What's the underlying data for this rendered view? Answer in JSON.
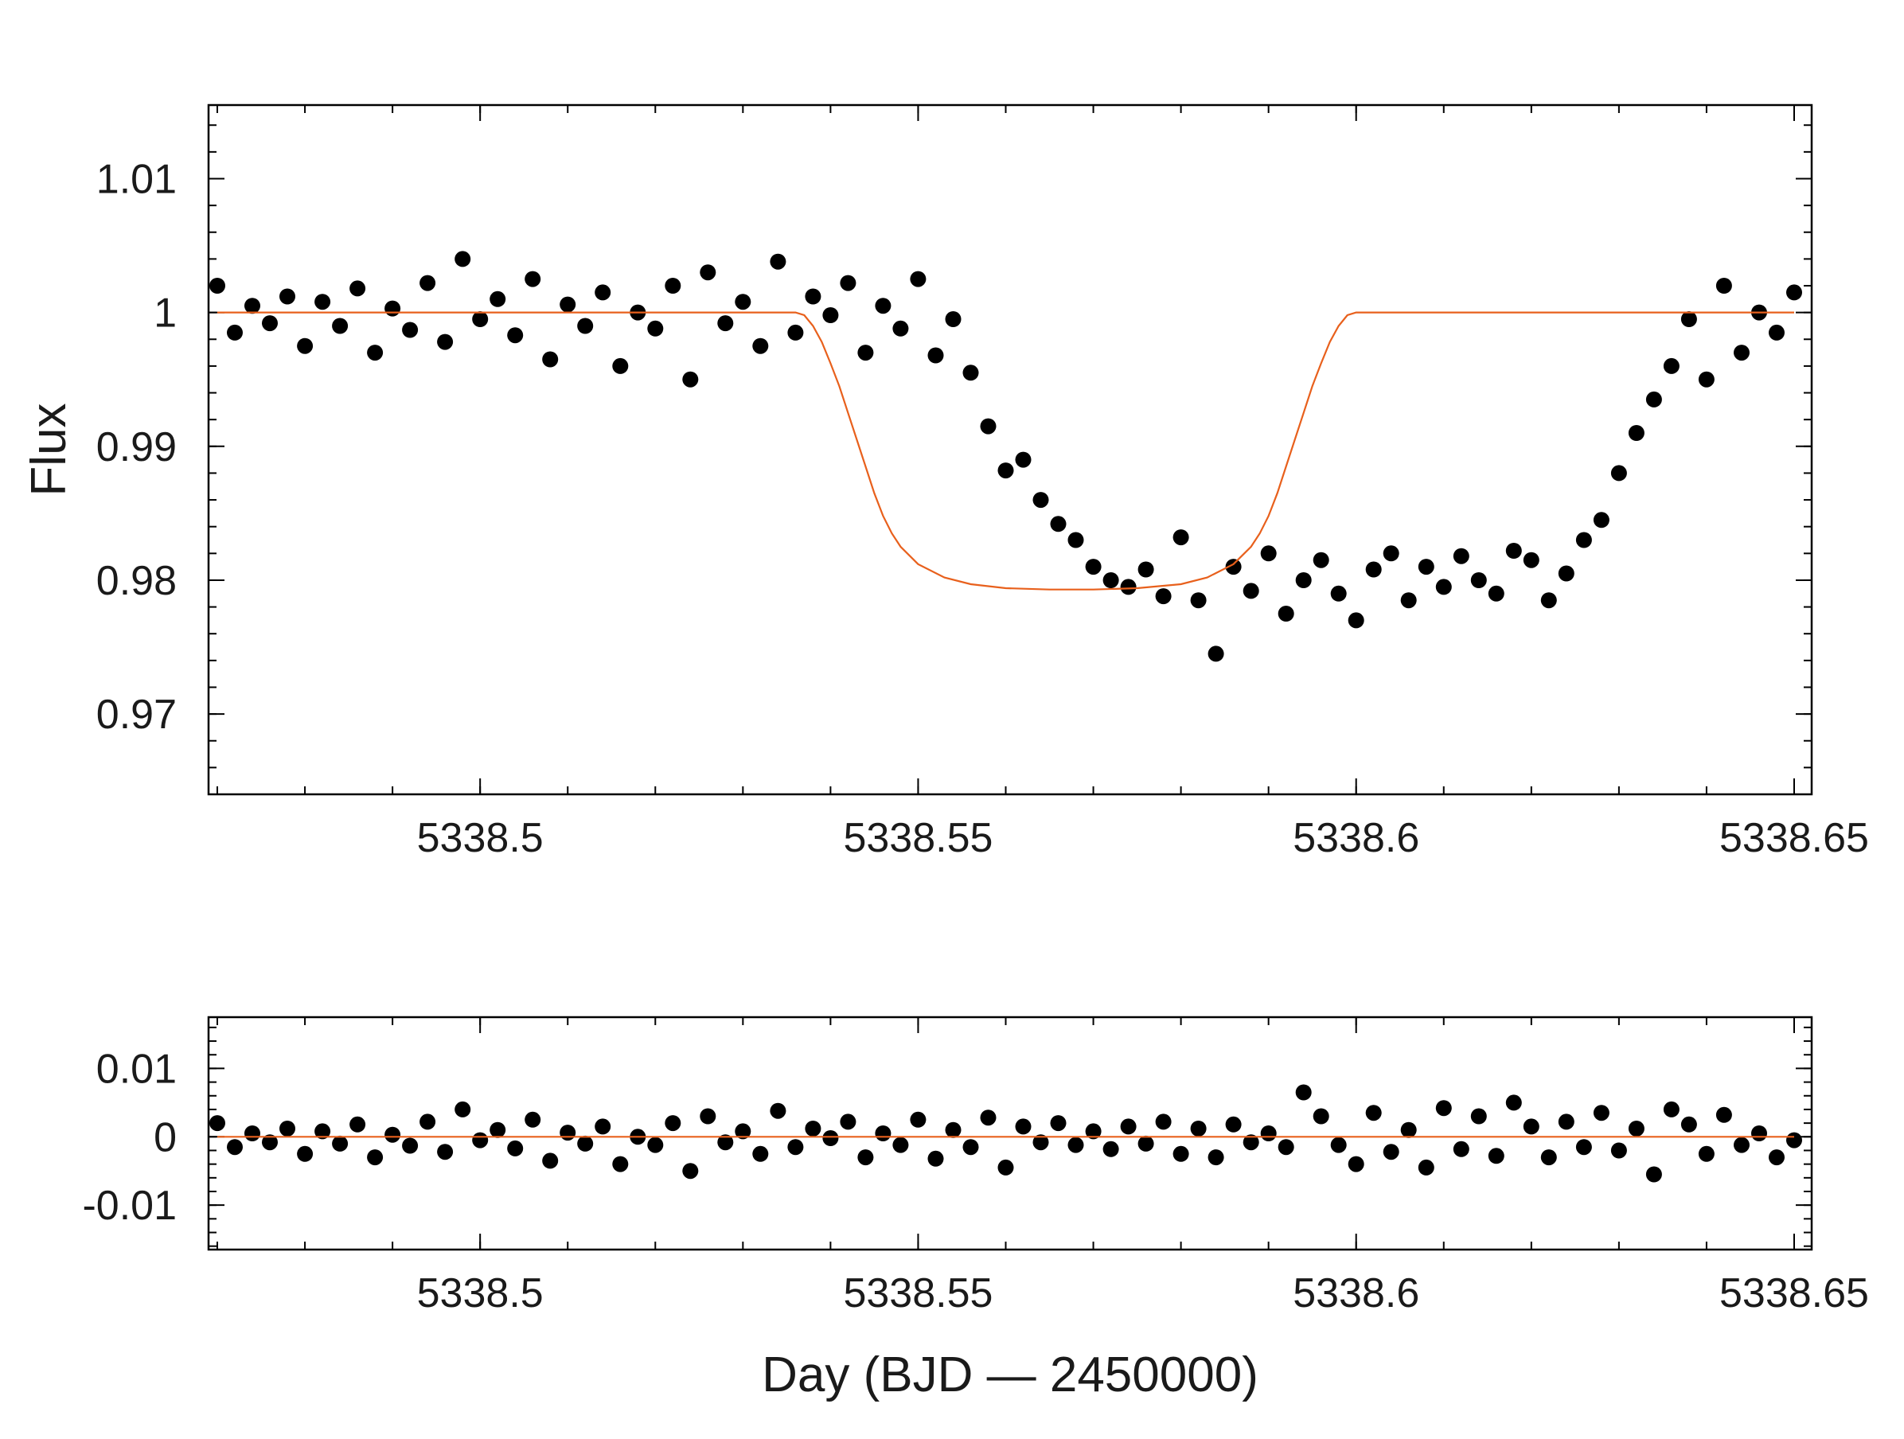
{
  "chart_data": [
    {
      "type": "scatter",
      "title": "",
      "xlabel": "",
      "ylabel": "Flux",
      "xlim": [
        5338.469,
        5338.652
      ],
      "ylim": [
        0.964,
        1.0155
      ],
      "x_ticks": [
        5338.5,
        5338.55,
        5338.6,
        5338.65
      ],
      "x_tick_labels": [
        "5338.5",
        "5338.55",
        "5338.6",
        "5338.65"
      ],
      "y_ticks": [
        0.97,
        0.98,
        0.99,
        1.0,
        1.01
      ],
      "y_tick_labels": [
        "0.97",
        "0.98",
        "0.99",
        "1",
        "1.01"
      ],
      "grid": false,
      "series": [
        {
          "kind": "points",
          "color": "#000000",
          "x": [
            5338.47,
            5338.472,
            5338.474,
            5338.476,
            5338.478,
            5338.48,
            5338.482,
            5338.484,
            5338.486,
            5338.488,
            5338.49,
            5338.492,
            5338.494,
            5338.496,
            5338.498,
            5338.5,
            5338.502,
            5338.504,
            5338.506,
            5338.508,
            5338.51,
            5338.512,
            5338.514,
            5338.516,
            5338.518,
            5338.52,
            5338.522,
            5338.524,
            5338.526,
            5338.528,
            5338.53,
            5338.532,
            5338.534,
            5338.536,
            5338.538,
            5338.54,
            5338.542,
            5338.544,
            5338.546,
            5338.548,
            5338.55,
            5338.552,
            5338.554,
            5338.556,
            5338.558,
            5338.56,
            5338.562,
            5338.564,
            5338.566,
            5338.568,
            5338.57,
            5338.572,
            5338.574,
            5338.576,
            5338.578,
            5338.58,
            5338.582,
            5338.584,
            5338.586,
            5338.588,
            5338.59,
            5338.592,
            5338.594,
            5338.596,
            5338.598,
            5338.6,
            5338.602,
            5338.604,
            5338.606,
            5338.608,
            5338.61,
            5338.612,
            5338.614,
            5338.616,
            5338.618,
            5338.62,
            5338.622,
            5338.624,
            5338.626,
            5338.628,
            5338.63,
            5338.632,
            5338.634,
            5338.636,
            5338.638,
            5338.64,
            5338.642,
            5338.644,
            5338.646,
            5338.648,
            5338.65
          ],
          "y": [
            1.002,
            0.9985,
            1.0005,
            0.9992,
            1.0012,
            0.9975,
            1.0008,
            0.999,
            1.0018,
            0.997,
            1.0003,
            0.9987,
            1.0022,
            0.9978,
            1.004,
            0.9995,
            1.001,
            0.9983,
            1.0025,
            0.9965,
            1.0006,
            0.999,
            1.0015,
            0.996,
            1.0,
            0.9988,
            1.002,
            0.995,
            1.003,
            0.9992,
            1.0008,
            0.9975,
            1.0038,
            0.9985,
            1.0012,
            0.9998,
            1.0022,
            0.997,
            1.0005,
            0.9988,
            1.0025,
            0.9968,
            0.9995,
            0.9955,
            0.9915,
            0.9882,
            0.989,
            0.986,
            0.9842,
            0.983,
            0.981,
            0.98,
            0.9795,
            0.9808,
            0.9788,
            0.9832,
            0.9785,
            0.9745,
            0.981,
            0.9792,
            0.982,
            0.9775,
            0.98,
            0.9815,
            0.979,
            0.977,
            0.9808,
            0.982,
            0.9785,
            0.981,
            0.9795,
            0.9818,
            0.98,
            0.979,
            0.9822,
            0.9815,
            0.9785,
            0.9805,
            0.983,
            0.9845,
            0.988,
            0.991,
            0.9935,
            0.996,
            0.9995,
            0.995,
            1.002,
            0.997,
            1.0,
            0.9985,
            1.0015
          ]
        },
        {
          "kind": "model",
          "color": "#e8601c",
          "x": [
            5338.47,
            5338.536,
            5338.537,
            5338.538,
            5338.539,
            5338.54,
            5338.541,
            5338.542,
            5338.543,
            5338.544,
            5338.545,
            5338.546,
            5338.547,
            5338.548,
            5338.55,
            5338.553,
            5338.556,
            5338.56,
            5338.565,
            5338.57,
            5338.575,
            5338.58,
            5338.583,
            5338.586,
            5338.588,
            5338.589,
            5338.59,
            5338.591,
            5338.592,
            5338.593,
            5338.594,
            5338.595,
            5338.596,
            5338.597,
            5338.598,
            5338.599,
            5338.6,
            5338.65
          ],
          "y": [
            1.0,
            1.0,
            0.9998,
            0.999,
            0.9978,
            0.9962,
            0.9945,
            0.9925,
            0.9905,
            0.9885,
            0.9865,
            0.9848,
            0.9835,
            0.9825,
            0.9812,
            0.9802,
            0.9797,
            0.9794,
            0.9793,
            0.9793,
            0.9794,
            0.9797,
            0.9802,
            0.9812,
            0.9825,
            0.9835,
            0.9848,
            0.9865,
            0.9885,
            0.9905,
            0.9925,
            0.9945,
            0.9962,
            0.9978,
            0.999,
            0.9998,
            1.0,
            1.0
          ]
        }
      ]
    },
    {
      "type": "scatter",
      "title": "",
      "xlabel": "Day (BJD — 2450000)",
      "ylabel": "",
      "xlim": [
        5338.469,
        5338.652
      ],
      "ylim": [
        -0.0165,
        0.0175
      ],
      "x_ticks": [
        5338.5,
        5338.55,
        5338.6,
        5338.65
      ],
      "x_tick_labels": [
        "5338.5",
        "5338.55",
        "5338.6",
        "5338.65"
      ],
      "y_ticks": [
        -0.01,
        0,
        0.01
      ],
      "y_tick_labels": [
        "-0.01",
        "0",
        "0.01"
      ],
      "grid": false,
      "series": [
        {
          "kind": "points",
          "color": "#000000",
          "x": [
            5338.47,
            5338.472,
            5338.474,
            5338.476,
            5338.478,
            5338.48,
            5338.482,
            5338.484,
            5338.486,
            5338.488,
            5338.49,
            5338.492,
            5338.494,
            5338.496,
            5338.498,
            5338.5,
            5338.502,
            5338.504,
            5338.506,
            5338.508,
            5338.51,
            5338.512,
            5338.514,
            5338.516,
            5338.518,
            5338.52,
            5338.522,
            5338.524,
            5338.526,
            5338.528,
            5338.53,
            5338.532,
            5338.534,
            5338.536,
            5338.538,
            5338.54,
            5338.542,
            5338.544,
            5338.546,
            5338.548,
            5338.55,
            5338.552,
            5338.554,
            5338.556,
            5338.558,
            5338.56,
            5338.562,
            5338.564,
            5338.566,
            5338.568,
            5338.57,
            5338.572,
            5338.574,
            5338.576,
            5338.578,
            5338.58,
            5338.582,
            5338.584,
            5338.586,
            5338.588,
            5338.59,
            5338.592,
            5338.594,
            5338.596,
            5338.598,
            5338.6,
            5338.602,
            5338.604,
            5338.606,
            5338.608,
            5338.61,
            5338.612,
            5338.614,
            5338.616,
            5338.618,
            5338.62,
            5338.622,
            5338.624,
            5338.626,
            5338.628,
            5338.63,
            5338.632,
            5338.634,
            5338.636,
            5338.638,
            5338.64,
            5338.642,
            5338.644,
            5338.646,
            5338.648,
            5338.65
          ],
          "y": [
            0.002,
            -0.0015,
            0.0005,
            -0.0008,
            0.0012,
            -0.0025,
            0.0008,
            -0.001,
            0.0018,
            -0.003,
            0.0003,
            -0.0013,
            0.0022,
            -0.0022,
            0.004,
            -0.0005,
            0.001,
            -0.0017,
            0.0025,
            -0.0035,
            0.0006,
            -0.001,
            0.0015,
            -0.004,
            0.0,
            -0.0012,
            0.002,
            -0.005,
            0.003,
            -0.0008,
            0.0008,
            -0.0025,
            0.0038,
            -0.0015,
            0.0012,
            -0.0002,
            0.0022,
            -0.003,
            0.0005,
            -0.0012,
            0.0025,
            -0.0032,
            0.001,
            -0.0015,
            0.0028,
            -0.0045,
            0.0015,
            -0.0008,
            0.002,
            -0.0012,
            0.0008,
            -0.0018,
            0.0015,
            -0.001,
            0.0022,
            -0.0025,
            0.0012,
            -0.003,
            0.0018,
            -0.0008,
            0.0005,
            -0.0015,
            0.0065,
            0.003,
            -0.0012,
            -0.004,
            0.0035,
            -0.0022,
            0.001,
            -0.0045,
            0.0042,
            -0.0018,
            0.003,
            -0.0028,
            0.005,
            0.0015,
            -0.003,
            0.0022,
            -0.0015,
            0.0035,
            -0.002,
            0.0012,
            -0.0055,
            0.004,
            0.0018,
            -0.0025,
            0.0032,
            -0.0012,
            0.0005,
            -0.003,
            -0.0005
          ]
        },
        {
          "kind": "model",
          "color": "#e8601c",
          "x": [
            5338.47,
            5338.65
          ],
          "y": [
            0,
            0
          ]
        }
      ]
    }
  ]
}
